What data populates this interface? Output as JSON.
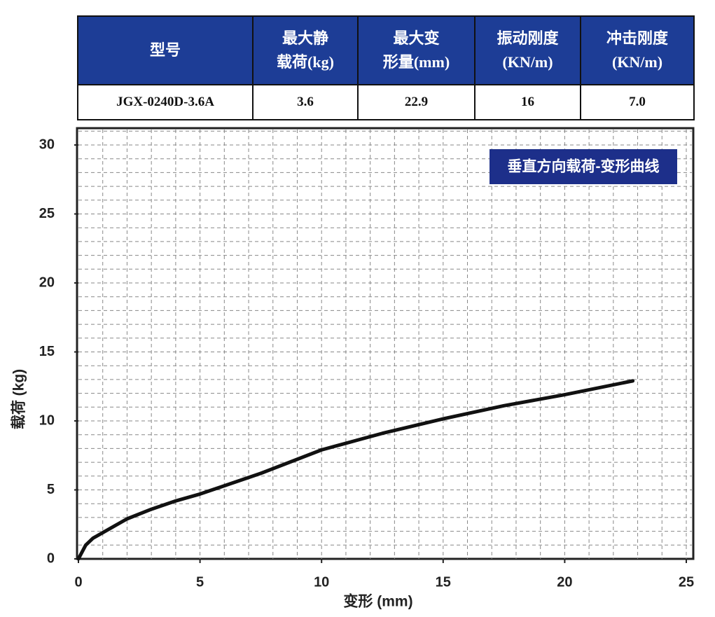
{
  "table": {
    "header": [
      "型号",
      "最大静\n载荷(kg)",
      "最大变\n形量(mm)",
      "振动刚度\n(KN/m)",
      "冲击刚度\n(KN/m)"
    ],
    "rows": [
      [
        "JGX-0240D-3.6A",
        "3.6",
        "22.9",
        "16",
        "7.0"
      ]
    ]
  },
  "chart_data": {
    "type": "line",
    "title": "垂直方向载荷-变形曲线",
    "x_label": "变形 (mm)",
    "y_label": "载荷 (kg)",
    "x": [
      0,
      0.3,
      0.6,
      1,
      1.5,
      2,
      3,
      4,
      5,
      6,
      7.5,
      10,
      12.5,
      15,
      17.5,
      20,
      22.8
    ],
    "series": [
      {
        "name": "垂直方向载荷-变形曲线",
        "color": "#111111",
        "values": [
          0,
          1.0,
          1.5,
          1.9,
          2.4,
          2.9,
          3.6,
          4.2,
          4.7,
          5.3,
          6.2,
          7.9,
          9.1,
          10.15,
          11.1,
          11.9,
          12.9
        ]
      }
    ],
    "xlim": [
      0,
      25
    ],
    "ylim": [
      0,
      30
    ],
    "xticks": [
      0,
      5,
      10,
      15,
      20,
      25
    ],
    "yticks": [
      0,
      5,
      10,
      15,
      20,
      25,
      30
    ],
    "grid": true
  }
}
